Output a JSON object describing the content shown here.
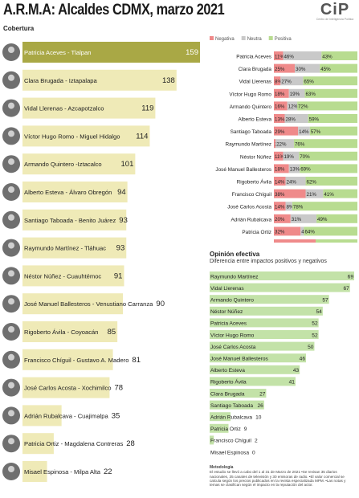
{
  "header": {
    "title": "A.R.M.A: Alcaldes CDMX, marzo 2021",
    "logo_mark": "CiP",
    "logo_sub": "Centro de Inteligencia Política"
  },
  "chart_data": [
    {
      "type": "bar",
      "title": "Cobertura",
      "categories": [
        "Patricia Aceves - Tlalpan",
        "Clara Brugada - Iztapalapa",
        "Vidal Llerenas - Azcapotzalco",
        "Víctor Hugo Romo - Miguel Hidalgo",
        "Armando Quintero -Iztacalco",
        "Alberto Esteva - Álvaro Obregón",
        "Santiago Taboada - Benito Juárez",
        "Raymundo Martínez - Tláhuac",
        "Néstor Núñez - Cuauhtémoc",
        "José Manuel Ballesteros - Venustiano Carranza",
        "Rigoberto Ávila - Coyoacán",
        "Francisco Chíguil - Gustavo A. Madero",
        "José Carlos Acosta - Xochimilco",
        "Adrián Rubalcava - Cuajimalpa",
        "Patricia Ortiz - Magdalena Contreras",
        "Misael Espinosa - Milpa Alta"
      ],
      "values": [
        159,
        138,
        119,
        114,
        101,
        94,
        93,
        93,
        91,
        90,
        85,
        81,
        78,
        35,
        28,
        22
      ],
      "value_labels": [
        "159",
        "138",
        "119",
        "114",
        "101",
        "94",
        "93",
        "93",
        "91",
        "90",
        "85",
        "81",
        "78",
        "35",
        "28",
        "22"
      ],
      "xlim": [
        0,
        159
      ],
      "colors": {
        "highlight": "#a9a845",
        "bar": "#efeab7",
        "photo": "#6f6f6f"
      }
    },
    {
      "type": "bar",
      "stacked": true,
      "percent": true,
      "legend": [
        {
          "name": "Negativa",
          "color": "#ef8a8a"
        },
        {
          "name": "Neutra",
          "color": "#c9c9c9"
        },
        {
          "name": "Positiva",
          "color": "#b8dc90"
        }
      ],
      "legend_placement": "top",
      "categories": [
        "Patricia Aceves",
        "Clara Brugada",
        "Vidal Llerenas",
        "Víctor Hugo Romo",
        "Armando Quintero",
        "Alberto Esteva",
        "Santiago Taboada",
        "Raymundo Martínez",
        "Néstor Núñez",
        "José Manuel Ballesteros",
        "Rigoberto Ávila",
        "Francisco Chíguil",
        "José Carlos Acosta",
        "Adrián Rubalcava",
        "Patricia Ortiz",
        "Misael Espinosa"
      ],
      "series": [
        {
          "name": "Negativa",
          "values": [
            11,
            25,
            8,
            18,
            16,
            13,
            29,
            2,
            11,
            18,
            14,
            38,
            14,
            20,
            32,
            50
          ]
        },
        {
          "name": "Neutra",
          "values": [
            46,
            30,
            27,
            19,
            12,
            28,
            14,
            22,
            19,
            13,
            24,
            21,
            8,
            31,
            4,
            0
          ]
        },
        {
          "name": "Positiva",
          "values": [
            43,
            45,
            65,
            63,
            72,
            59,
            57,
            76,
            70,
            69,
            62,
            41,
            78,
            49,
            64,
            50
          ]
        }
      ],
      "value_labels": [
        [
          "11%",
          "46%",
          "43%"
        ],
        [
          "25%",
          "30%",
          "45%"
        ],
        [
          "8%",
          "27%",
          "65%"
        ],
        [
          "18%",
          "19%",
          "63%"
        ],
        [
          "16%",
          "12%",
          "72%"
        ],
        [
          "13%",
          "28%",
          "59%"
        ],
        [
          "29%",
          "14%",
          "57%"
        ],
        [
          "2%",
          "22%",
          "76%"
        ],
        [
          "11%",
          "19%",
          "70%"
        ],
        [
          "18%",
          "13%",
          "69%"
        ],
        [
          "14%",
          "24%",
          "62%"
        ],
        [
          "38%",
          "21%",
          "41%"
        ],
        [
          "14%",
          "8%",
          "78%"
        ],
        [
          "20%",
          "31%",
          "49%"
        ],
        [
          "32%",
          "4%",
          "64%"
        ],
        [
          "50%",
          "",
          "50%"
        ]
      ],
      "ylim": [
        0,
        100
      ]
    },
    {
      "type": "bar",
      "title": "Opinión efectiva",
      "subtitle": "Diferencia entre impactos positivos y negativos",
      "categories": [
        "Raymundo Martínez",
        "Vidal Llerenas",
        "Armando Quintero",
        "Néstor Núñez",
        "Patricia Aceves",
        "Víctor Hugo Romo",
        "José Carlos Acosta",
        "José Manuel Ballesteros",
        "Alberto Esteva",
        "Rigoberto Ávila",
        "Clara Brugada",
        "Santiago Taboada",
        "Adrián Rubalcava",
        "Patricia Ortiz",
        "Francisco Chíguil",
        "Misael Espinosa"
      ],
      "values": [
        69,
        67,
        57,
        54,
        52,
        52,
        50,
        46,
        43,
        41,
        27,
        26,
        10,
        9,
        2,
        0
      ],
      "value_labels": [
        "69",
        "67",
        "57",
        "54",
        "52",
        "52",
        "50",
        "46",
        "43",
        "41",
        "27",
        "26",
        "10",
        "9",
        "2",
        "0"
      ],
      "xlim": [
        0,
        69
      ],
      "colors": {
        "bar": "#c3e2a8"
      }
    }
  ],
  "methodology": {
    "title": "Metodología",
    "text": "El estudio se llevó a cabo del 1 al 31 de Marzo de 2021 •Se revisan 35 diarios nacionales, 35 canales de televisión y 30 emisoras de radio. •El valor comercial se calcula según los precios publicados en la revista especializada MPM. •Las notas y temas se clasifican según el impacto en la reputación del actor."
  }
}
